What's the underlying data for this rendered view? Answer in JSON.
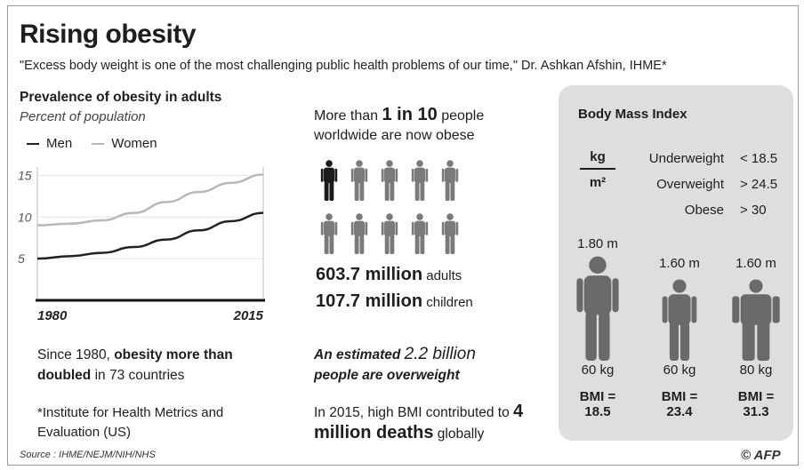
{
  "header": {
    "title": "Rising obesity",
    "quote": "\"Excess body weight is one of the most challenging public health problems of our time,\" Dr. Ashkan Afshin, IHME*"
  },
  "chart_data": {
    "type": "line",
    "title": "Prevalence of obesity in adults",
    "subtitle": "Percent of population",
    "x": [
      1980,
      1985,
      1990,
      1995,
      2000,
      2005,
      2010,
      2015
    ],
    "xticks": [
      "1980",
      "2015"
    ],
    "yticks": [
      5,
      10,
      15
    ],
    "ylim": [
      0,
      16
    ],
    "series": [
      {
        "name": "Men",
        "color": "#222222",
        "values": [
          5.0,
          5.3,
          5.7,
          6.4,
          7.3,
          8.4,
          9.5,
          10.5
        ]
      },
      {
        "name": "Women",
        "color": "#b8b8b8",
        "values": [
          9.0,
          9.2,
          9.6,
          10.5,
          11.8,
          13.0,
          14.1,
          15.1
        ]
      }
    ],
    "legend": "top-left"
  },
  "left": {
    "since_pre": "Since 1980, ",
    "since_bold": "obesity more than doubled",
    "since_post": " in 73 countries",
    "footnote": "*Institute for Health Metrics and Evaluation (US)",
    "source": "Source : IHME/NEJM/NIH/NHS"
  },
  "middle": {
    "intro_pre": "More than ",
    "intro_bold": "1 in 10",
    "intro_post": " people worldwide are now obese",
    "people_icon": "person-silhouette-icon",
    "people_count": 10,
    "highlighted_people": 1,
    "adults_bold": "603.7 million",
    "adults_text": " adults",
    "children_bold": "107.7 million",
    "children_text": " children",
    "estimate_pre": "An estimated ",
    "estimate_big": "2.2 billion",
    "estimate_post": "people are overweight",
    "deaths_pre": "In 2015, high BMI contributed to ",
    "deaths_bold": "4 million deaths",
    "deaths_post": " globally"
  },
  "bmi": {
    "title": "Body Mass Index",
    "numerator": "kg",
    "denominator": "m²",
    "classes": [
      {
        "label": "Underweight",
        "threshold": "< 18.5"
      },
      {
        "label": "Overweight",
        "threshold": "> 24.5"
      },
      {
        "label": "Obese",
        "threshold": "> 30"
      }
    ],
    "people": [
      {
        "height": "1.80 m",
        "weight": "60 kg",
        "bmi_label": "BMI =",
        "bmi": "18.5"
      },
      {
        "height": "1.60 m",
        "weight": "60 kg",
        "bmi_label": "BMI =",
        "bmi": "23.4"
      },
      {
        "height": "1.60 m",
        "weight": "80 kg",
        "bmi_label": "BMI =",
        "bmi": "31.3"
      }
    ]
  },
  "credit": "© AFP",
  "colors": {
    "men": "#222222",
    "women": "#b8b8b8",
    "panel": "#dedede",
    "figure": "#6a6a6a"
  }
}
